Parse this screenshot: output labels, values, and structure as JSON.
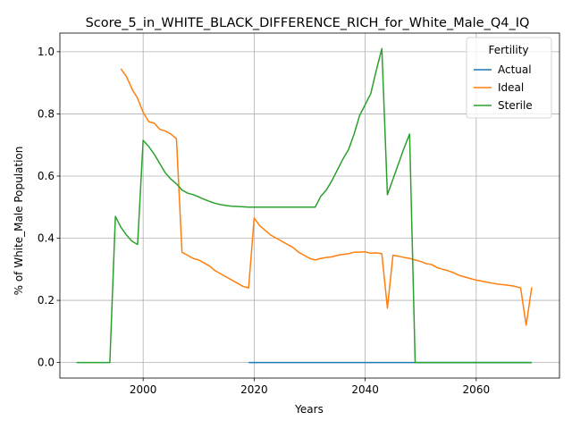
{
  "chart_data": {
    "type": "line",
    "title": "Score_5_in_WHITE_BLACK_DIFFERENCE_RICH_for_White_Male_Q4_IQ",
    "xlabel": "Years",
    "ylabel": "% of White_Male Population",
    "xlim": [
      1985,
      2075
    ],
    "ylim": [
      -0.05,
      1.06
    ],
    "xticks": [
      2000,
      2020,
      2040,
      2060
    ],
    "yticks": [
      0.0,
      0.2,
      0.4,
      0.6,
      0.8,
      1.0
    ],
    "grid": true,
    "legend": {
      "title": "Fertility",
      "placement": "top-right"
    },
    "series": [
      {
        "name": "Actual",
        "color": "#1f77b4",
        "x": [
          2019,
          2070
        ],
        "y": [
          0.0,
          0.0
        ]
      },
      {
        "name": "Ideal",
        "color": "#ff7f0e",
        "x": [
          1996,
          1997,
          1998,
          1999,
          2000,
          2001,
          2002,
          2003,
          2004,
          2005,
          2006,
          2007,
          2008,
          2009,
          2010,
          2011,
          2012,
          2013,
          2014,
          2015,
          2016,
          2017,
          2018,
          2019,
          2020,
          2021,
          2022,
          2023,
          2024,
          2025,
          2026,
          2027,
          2028,
          2029,
          2030,
          2031,
          2032,
          2033,
          2034,
          2035,
          2036,
          2037,
          2038,
          2039,
          2040,
          2041,
          2042,
          2043,
          2044,
          2045,
          2046,
          2047,
          2048,
          2049,
          2050,
          2051,
          2052,
          2053,
          2054,
          2055,
          2056,
          2057,
          2058,
          2059,
          2060,
          2061,
          2062,
          2063,
          2064,
          2065,
          2066,
          2067,
          2068,
          2069,
          2070
        ],
        "y": [
          0.945,
          0.92,
          0.88,
          0.85,
          0.805,
          0.775,
          0.77,
          0.75,
          0.745,
          0.735,
          0.72,
          0.355,
          0.345,
          0.335,
          0.33,
          0.32,
          0.31,
          0.295,
          0.285,
          0.275,
          0.265,
          0.255,
          0.245,
          0.24,
          0.465,
          0.44,
          0.425,
          0.41,
          0.4,
          0.39,
          0.38,
          0.37,
          0.355,
          0.345,
          0.335,
          0.33,
          0.335,
          0.338,
          0.34,
          0.345,
          0.348,
          0.35,
          0.355,
          0.355,
          0.356,
          0.352,
          0.353,
          0.35,
          0.175,
          0.345,
          0.342,
          0.338,
          0.335,
          0.33,
          0.325,
          0.318,
          0.315,
          0.305,
          0.3,
          0.295,
          0.288,
          0.28,
          0.275,
          0.27,
          0.265,
          0.262,
          0.258,
          0.255,
          0.252,
          0.25,
          0.248,
          0.245,
          0.24,
          0.12,
          0.242
        ]
      },
      {
        "name": "Sterile",
        "color": "#2ca02c",
        "x": [
          1988,
          1994,
          1995,
          1996,
          1997,
          1998,
          1999,
          2000,
          2001,
          2002,
          2003,
          2004,
          2005,
          2006,
          2007,
          2008,
          2009,
          2010,
          2011,
          2012,
          2013,
          2014,
          2015,
          2016,
          2017,
          2018,
          2019,
          2020,
          2030,
          2031,
          2032,
          2033,
          2034,
          2035,
          2036,
          2037,
          2038,
          2039,
          2040,
          2041,
          2042,
          2043,
          2044,
          2045,
          2046,
          2047,
          2048,
          2049,
          2070
        ],
        "y": [
          0.0,
          0.0,
          0.47,
          0.435,
          0.41,
          0.39,
          0.38,
          0.715,
          0.695,
          0.67,
          0.64,
          0.61,
          0.59,
          0.575,
          0.555,
          0.545,
          0.54,
          0.533,
          0.525,
          0.518,
          0.512,
          0.508,
          0.505,
          0.503,
          0.502,
          0.501,
          0.5,
          0.5,
          0.5,
          0.5,
          0.535,
          0.555,
          0.585,
          0.62,
          0.655,
          0.685,
          0.735,
          0.795,
          0.83,
          0.865,
          0.94,
          1.01,
          0.54,
          0.59,
          0.64,
          0.69,
          0.735,
          0.0,
          0.0
        ]
      }
    ]
  }
}
